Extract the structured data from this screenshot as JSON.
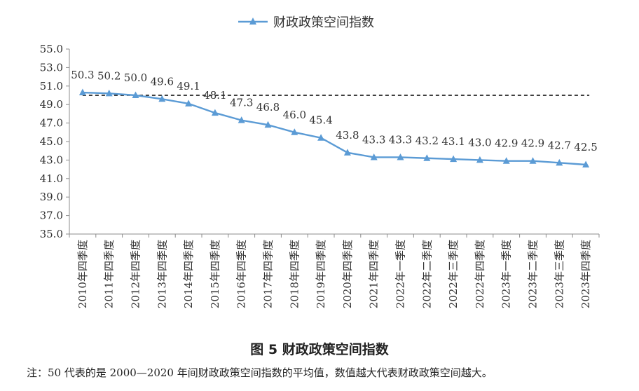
{
  "chart_data": {
    "type": "line",
    "legend": {
      "label": "财政政策空间指数",
      "placement": "top-center"
    },
    "categories": [
      "2010年四季度",
      "2011年四季度",
      "2012年四季度",
      "2013年四季度",
      "2014年四季度",
      "2015年四季度",
      "2016年四季度",
      "2017年四季度",
      "2018年四季度",
      "2019年四季度",
      "2020年四季度",
      "2021年四季度",
      "2022年一季度",
      "2022年二季度",
      "2022年三季度",
      "2022年四季度",
      "2023年一季度",
      "2023年二季度",
      "2023年三季度",
      "2023年四季度"
    ],
    "series": [
      {
        "name": "财政政策空间指数",
        "values": [
          50.3,
          50.2,
          50.0,
          49.6,
          49.1,
          48.1,
          47.3,
          46.8,
          46.0,
          45.4,
          43.8,
          43.3,
          43.3,
          43.2,
          43.1,
          43.0,
          42.9,
          42.9,
          42.7,
          42.5
        ],
        "color": "#5b9bd5"
      }
    ],
    "data_labels": [
      "50.3",
      "50.2",
      "50.0",
      "49.6",
      "49.1",
      "48.1",
      "47.3",
      "46.8",
      "46.0",
      "45.4",
      "43.8",
      "43.3",
      "43.3",
      "43.2",
      "43.1",
      "43.0",
      "42.9",
      "42.9",
      "42.7",
      "42.5"
    ],
    "reference_line": {
      "value": 50,
      "style": "dashed",
      "color": "#000000"
    },
    "ylim": [
      35.0,
      55.0
    ],
    "yticks": [
      "35.0",
      "37.0",
      "39.0",
      "41.0",
      "43.0",
      "45.0",
      "47.0",
      "49.0",
      "51.0",
      "53.0",
      "55.0"
    ],
    "grid": false
  },
  "caption": "图 5  财政政策空间指数",
  "note": "注：50 代表的是 2000—2020 年间财政政策空间指数的平均值，数值越大代表财政政策空间越大。"
}
